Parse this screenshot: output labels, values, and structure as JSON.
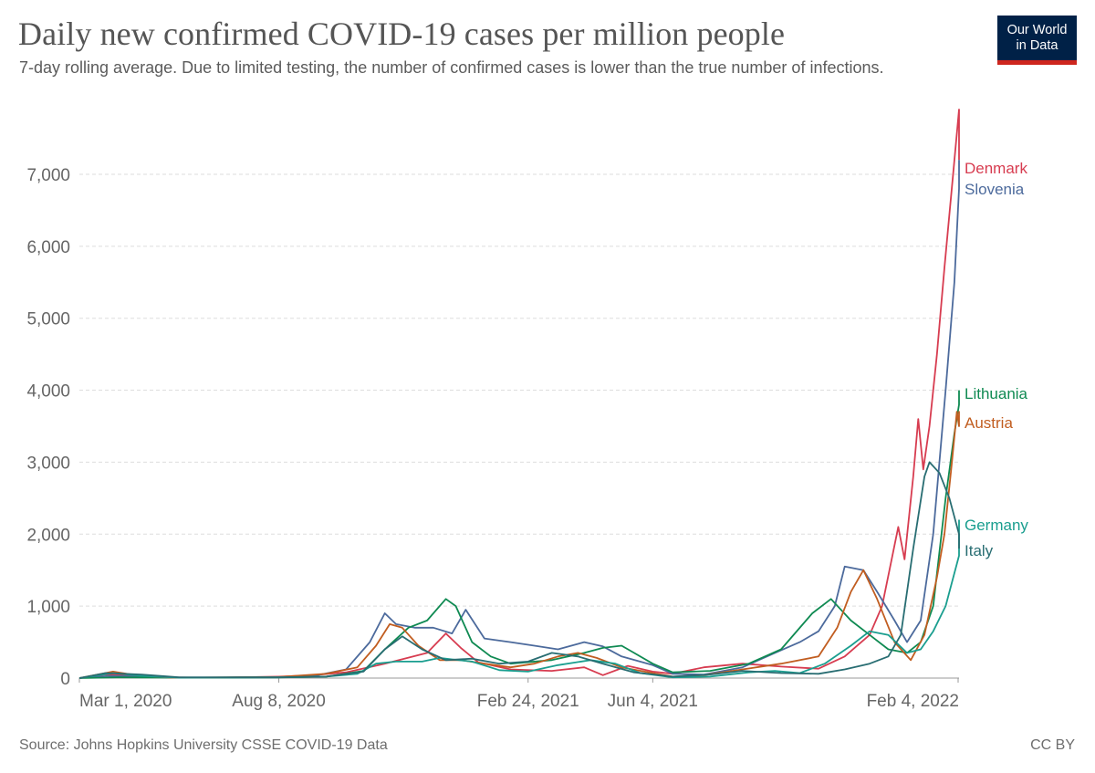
{
  "header": {
    "title": "Daily new confirmed COVID-19 cases per million people",
    "subtitle": "7-day rolling average. Due to limited testing, the number of confirmed cases is lower than the true number of infections."
  },
  "logo": {
    "line1": "Our World",
    "line2": "in Data",
    "colors": {
      "background": "#002147",
      "accent": "#ce261e"
    }
  },
  "footer": {
    "source": "Source: Johns Hopkins University CSSE COVID-19 Data",
    "license": "CC BY"
  },
  "chart_data": {
    "type": "line",
    "title": "Daily new confirmed COVID-19 cases per million people",
    "xlabel": "",
    "ylabel": "",
    "x_range": [
      "2020-03-01",
      "2022-02-04"
    ],
    "ylim": [
      0,
      7900
    ],
    "y_ticks": [
      0,
      1000,
      2000,
      3000,
      4000,
      5000,
      6000,
      7000
    ],
    "y_tick_labels": [
      "0",
      "1,000",
      "2,000",
      "3,000",
      "4,000",
      "5,000",
      "6,000",
      "7,000"
    ],
    "x_ticks": [
      "2020-03-01",
      "2020-08-08",
      "2021-02-24",
      "2021-06-04",
      "2022-02-04"
    ],
    "x_tick_labels": [
      "Mar 1, 2020",
      "Aug 8, 2020",
      "Feb 24, 2021",
      "Jun 4, 2021",
      "Feb 4, 2022"
    ],
    "grid": "horizontal dashed",
    "legend": "labels at line ends (right)",
    "series": [
      {
        "name": "Denmark",
        "color": "#d73c50",
        "points": [
          [
            "2020-03-01",
            0
          ],
          [
            "2020-03-22",
            50
          ],
          [
            "2020-04-10",
            35
          ],
          [
            "2020-05-10",
            10
          ],
          [
            "2020-06-15",
            5
          ],
          [
            "2020-08-08",
            20
          ],
          [
            "2020-09-01",
            35
          ],
          [
            "2020-10-01",
            80
          ],
          [
            "2020-11-01",
            200
          ],
          [
            "2020-12-05",
            350
          ],
          [
            "2020-12-20",
            620
          ],
          [
            "2021-01-01",
            420
          ],
          [
            "2021-01-15",
            220
          ],
          [
            "2021-02-10",
            120
          ],
          [
            "2021-03-15",
            100
          ],
          [
            "2021-04-10",
            150
          ],
          [
            "2021-04-25",
            40
          ],
          [
            "2021-05-15",
            170
          ],
          [
            "2021-06-04",
            90
          ],
          [
            "2021-06-20",
            60
          ],
          [
            "2021-07-15",
            150
          ],
          [
            "2021-08-15",
            200
          ],
          [
            "2021-09-15",
            160
          ],
          [
            "2021-10-15",
            130
          ],
          [
            "2021-11-05",
            300
          ],
          [
            "2021-11-25",
            600
          ],
          [
            "2021-12-05",
            1000
          ],
          [
            "2021-12-18",
            2100
          ],
          [
            "2021-12-23",
            1650
          ],
          [
            "2021-12-30",
            2800
          ],
          [
            "2022-01-03",
            3600
          ],
          [
            "2022-01-07",
            2900
          ],
          [
            "2022-01-12",
            3500
          ],
          [
            "2022-01-18",
            4500
          ],
          [
            "2022-01-24",
            5700
          ],
          [
            "2022-01-31",
            7000
          ],
          [
            "2022-02-06",
            7900
          ],
          [
            "2022-02-09",
            7400
          ],
          [
            "2022-02-11",
            7600
          ],
          [
            "2022-02-13",
            7200
          ]
        ]
      },
      {
        "name": "Slovenia",
        "color": "#4c6a9c",
        "points": [
          [
            "2020-03-01",
            0
          ],
          [
            "2020-03-25",
            30
          ],
          [
            "2020-04-20",
            20
          ],
          [
            "2020-05-15",
            5
          ],
          [
            "2020-08-08",
            10
          ],
          [
            "2020-09-05",
            30
          ],
          [
            "2020-10-01",
            120
          ],
          [
            "2020-10-20",
            500
          ],
          [
            "2020-11-01",
            900
          ],
          [
            "2020-11-10",
            750
          ],
          [
            "2020-11-25",
            700
          ],
          [
            "2020-12-10",
            700
          ],
          [
            "2020-12-25",
            620
          ],
          [
            "2021-01-05",
            950
          ],
          [
            "2021-01-20",
            550
          ],
          [
            "2021-02-10",
            500
          ],
          [
            "2021-03-01",
            450
          ],
          [
            "2021-03-20",
            400
          ],
          [
            "2021-04-10",
            500
          ],
          [
            "2021-04-25",
            440
          ],
          [
            "2021-05-10",
            300
          ],
          [
            "2021-06-04",
            180
          ],
          [
            "2021-06-20",
            60
          ],
          [
            "2021-07-15",
            50
          ],
          [
            "2021-08-15",
            150
          ],
          [
            "2021-09-10",
            350
          ],
          [
            "2021-09-30",
            500
          ],
          [
            "2021-10-15",
            650
          ],
          [
            "2021-10-28",
            1000
          ],
          [
            "2021-11-05",
            1550
          ],
          [
            "2021-11-20",
            1500
          ],
          [
            "2021-12-01",
            1200
          ],
          [
            "2021-12-15",
            800
          ],
          [
            "2021-12-25",
            500
          ],
          [
            "2022-01-05",
            800
          ],
          [
            "2022-01-15",
            2000
          ],
          [
            "2022-01-25",
            4000
          ],
          [
            "2022-02-01",
            5500
          ],
          [
            "2022-02-05",
            6800
          ],
          [
            "2022-02-09",
            7000
          ],
          [
            "2022-02-13",
            7200
          ]
        ]
      },
      {
        "name": "Lithuania",
        "color": "#0f8a52",
        "points": [
          [
            "2020-03-01",
            0
          ],
          [
            "2020-04-01",
            10
          ],
          [
            "2020-06-01",
            5
          ],
          [
            "2020-08-08",
            8
          ],
          [
            "2020-09-15",
            20
          ],
          [
            "2020-10-15",
            100
          ],
          [
            "2020-11-01",
            400
          ],
          [
            "2020-11-20",
            700
          ],
          [
            "2020-12-05",
            800
          ],
          [
            "2020-12-20",
            1100
          ],
          [
            "2020-12-28",
            1000
          ],
          [
            "2021-01-10",
            500
          ],
          [
            "2021-01-25",
            300
          ],
          [
            "2021-02-10",
            200
          ],
          [
            "2021-03-15",
            250
          ],
          [
            "2021-04-10",
            350
          ],
          [
            "2021-04-25",
            420
          ],
          [
            "2021-05-10",
            450
          ],
          [
            "2021-05-20",
            350
          ],
          [
            "2021-06-04",
            200
          ],
          [
            "2021-06-20",
            80
          ],
          [
            "2021-07-20",
            100
          ],
          [
            "2021-08-20",
            200
          ],
          [
            "2021-09-15",
            400
          ],
          [
            "2021-10-10",
            900
          ],
          [
            "2021-10-25",
            1100
          ],
          [
            "2021-11-10",
            800
          ],
          [
            "2021-11-25",
            600
          ],
          [
            "2021-12-10",
            400
          ],
          [
            "2021-12-25",
            350
          ],
          [
            "2022-01-05",
            500
          ],
          [
            "2022-01-15",
            1000
          ],
          [
            "2022-01-25",
            2500
          ],
          [
            "2022-02-01",
            3400
          ],
          [
            "2022-02-07",
            3800
          ],
          [
            "2022-02-13",
            4000
          ]
        ]
      },
      {
        "name": "Austria",
        "color": "#c15d20",
        "points": [
          [
            "2020-03-01",
            0
          ],
          [
            "2020-03-28",
            90
          ],
          [
            "2020-04-15",
            40
          ],
          [
            "2020-05-15",
            5
          ],
          [
            "2020-08-08",
            15
          ],
          [
            "2020-09-15",
            60
          ],
          [
            "2020-10-10",
            150
          ],
          [
            "2020-10-25",
            450
          ],
          [
            "2020-11-05",
            750
          ],
          [
            "2020-11-15",
            700
          ],
          [
            "2020-11-28",
            450
          ],
          [
            "2020-12-15",
            250
          ],
          [
            "2021-01-01",
            250
          ],
          [
            "2021-01-20",
            200
          ],
          [
            "2021-02-10",
            150
          ],
          [
            "2021-03-01",
            200
          ],
          [
            "2021-03-20",
            300
          ],
          [
            "2021-04-05",
            350
          ],
          [
            "2021-04-20",
            280
          ],
          [
            "2021-05-10",
            150
          ],
          [
            "2021-06-04",
            70
          ],
          [
            "2021-06-20",
            20
          ],
          [
            "2021-07-15",
            40
          ],
          [
            "2021-08-15",
            120
          ],
          [
            "2021-09-15",
            200
          ],
          [
            "2021-10-15",
            300
          ],
          [
            "2021-10-30",
            700
          ],
          [
            "2021-11-10",
            1200
          ],
          [
            "2021-11-20",
            1500
          ],
          [
            "2021-12-01",
            1100
          ],
          [
            "2021-12-15",
            500
          ],
          [
            "2021-12-28",
            250
          ],
          [
            "2022-01-08",
            600
          ],
          [
            "2022-01-18",
            1400
          ],
          [
            "2022-01-24",
            2000
          ],
          [
            "2022-01-30",
            3000
          ],
          [
            "2022-02-03",
            3700
          ],
          [
            "2022-02-06",
            3500
          ],
          [
            "2022-02-09",
            3700
          ],
          [
            "2022-02-13",
            3650
          ]
        ]
      },
      {
        "name": "Germany",
        "color": "#1a9e8f",
        "points": [
          [
            "2020-03-01",
            0
          ],
          [
            "2020-03-28",
            70
          ],
          [
            "2020-04-20",
            30
          ],
          [
            "2020-05-20",
            5
          ],
          [
            "2020-08-08",
            12
          ],
          [
            "2020-09-15",
            20
          ],
          [
            "2020-10-10",
            60
          ],
          [
            "2020-10-25",
            200
          ],
          [
            "2020-11-10",
            230
          ],
          [
            "2020-12-01",
            230
          ],
          [
            "2020-12-15",
            280
          ],
          [
            "2020-12-25",
            260
          ],
          [
            "2021-01-10",
            230
          ],
          [
            "2021-02-01",
            110
          ],
          [
            "2021-02-24",
            90
          ],
          [
            "2021-03-20",
            180
          ],
          [
            "2021-04-15",
            250
          ],
          [
            "2021-05-05",
            200
          ],
          [
            "2021-05-25",
            70
          ],
          [
            "2021-06-20",
            10
          ],
          [
            "2021-07-20",
            20
          ],
          [
            "2021-08-20",
            80
          ],
          [
            "2021-09-10",
            100
          ],
          [
            "2021-09-30",
            70
          ],
          [
            "2021-10-20",
            200
          ],
          [
            "2021-11-10",
            450
          ],
          [
            "2021-11-25",
            650
          ],
          [
            "2021-12-10",
            600
          ],
          [
            "2021-12-25",
            350
          ],
          [
            "2022-01-05",
            400
          ],
          [
            "2022-01-15",
            650
          ],
          [
            "2022-01-25",
            1000
          ],
          [
            "2022-02-05",
            1700
          ],
          [
            "2022-02-13",
            2200
          ]
        ]
      },
      {
        "name": "Italy",
        "color": "#286d72",
        "points": [
          [
            "2020-03-01",
            0
          ],
          [
            "2020-03-22",
            70
          ],
          [
            "2020-04-20",
            50
          ],
          [
            "2020-05-20",
            10
          ],
          [
            "2020-08-08",
            10
          ],
          [
            "2020-09-15",
            20
          ],
          [
            "2020-10-15",
            90
          ],
          [
            "2020-11-01",
            400
          ],
          [
            "2020-11-15",
            580
          ],
          [
            "2020-12-01",
            400
          ],
          [
            "2020-12-20",
            250
          ],
          [
            "2021-01-10",
            270
          ],
          [
            "2021-02-01",
            200
          ],
          [
            "2021-02-24",
            230
          ],
          [
            "2021-03-15",
            350
          ],
          [
            "2021-04-05",
            300
          ],
          [
            "2021-04-25",
            200
          ],
          [
            "2021-05-20",
            80
          ],
          [
            "2021-06-20",
            20
          ],
          [
            "2021-07-20",
            50
          ],
          [
            "2021-08-15",
            100
          ],
          [
            "2021-09-15",
            70
          ],
          [
            "2021-10-15",
            60
          ],
          [
            "2021-11-05",
            120
          ],
          [
            "2021-11-25",
            200
          ],
          [
            "2021-12-10",
            300
          ],
          [
            "2021-12-20",
            600
          ],
          [
            "2021-12-30",
            1800
          ],
          [
            "2022-01-08",
            2800
          ],
          [
            "2022-01-12",
            3000
          ],
          [
            "2022-01-20",
            2850
          ],
          [
            "2022-01-28",
            2500
          ],
          [
            "2022-02-05",
            2000
          ],
          [
            "2022-02-13",
            1800
          ]
        ]
      }
    ],
    "end_labels": [
      {
        "series": "Denmark",
        "label": "Denmark"
      },
      {
        "series": "Slovenia",
        "label": "Slovenia"
      },
      {
        "series": "Lithuania",
        "label": "Lithuania"
      },
      {
        "series": "Austria",
        "label": "Austria"
      },
      {
        "series": "Germany",
        "label": "Germany"
      },
      {
        "series": "Italy",
        "label": "Italy"
      }
    ]
  }
}
